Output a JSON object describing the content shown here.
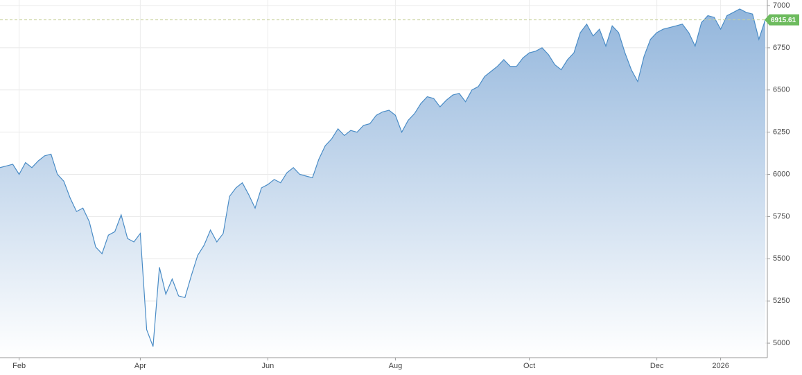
{
  "chart_data": {
    "type": "area",
    "color": "#4a8cc6",
    "ylim": [
      4914,
      7033
    ],
    "yticks": [
      5000,
      5250,
      5500,
      5750,
      6000,
      6250,
      6500,
      6750,
      7000
    ],
    "grid": true,
    "last_value": 6915.61,
    "categories": [
      null,
      null,
      null,
      "Feb",
      null,
      null,
      null,
      null,
      null,
      null,
      null,
      null,
      null,
      null,
      null,
      null,
      null,
      null,
      null,
      null,
      null,
      null,
      "Apr",
      null,
      null,
      null,
      null,
      null,
      null,
      null,
      null,
      null,
      null,
      null,
      null,
      null,
      null,
      null,
      null,
      null,
      null,
      null,
      "Jun",
      null,
      null,
      null,
      null,
      null,
      null,
      null,
      null,
      null,
      null,
      null,
      null,
      null,
      null,
      null,
      null,
      null,
      null,
      null,
      "Aug",
      null,
      null,
      null,
      null,
      null,
      null,
      null,
      null,
      null,
      null,
      null,
      null,
      null,
      null,
      null,
      null,
      null,
      null,
      null,
      null,
      "Oct",
      null,
      null,
      null,
      null,
      null,
      null,
      null,
      null,
      null,
      null,
      null,
      null,
      null,
      null,
      null,
      null,
      null,
      null,
      null,
      "Dec",
      null,
      null,
      null,
      null,
      null,
      null,
      null,
      null,
      null,
      "2026",
      null,
      null,
      null,
      null,
      null,
      null,
      null
    ],
    "values": [
      6040,
      6050,
      6060,
      6000,
      6070,
      6040,
      6080,
      6110,
      6120,
      6000,
      5960,
      5860,
      5780,
      5800,
      5720,
      5570,
      5530,
      5640,
      5660,
      5760,
      5620,
      5600,
      5650,
      5080,
      4980,
      5450,
      5290,
      5380,
      5280,
      5270,
      5400,
      5520,
      5580,
      5670,
      5600,
      5650,
      5870,
      5920,
      5950,
      5880,
      5800,
      5920,
      5940,
      5970,
      5950,
      6010,
      6040,
      6000,
      5990,
      5980,
      6090,
      6170,
      6210,
      6270,
      6230,
      6260,
      6250,
      6290,
      6300,
      6350,
      6370,
      6380,
      6350,
      6250,
      6320,
      6360,
      6420,
      6460,
      6450,
      6400,
      6440,
      6470,
      6480,
      6430,
      6500,
      6520,
      6580,
      6610,
      6640,
      6680,
      6640,
      6640,
      6690,
      6720,
      6730,
      6750,
      6710,
      6650,
      6620,
      6680,
      6720,
      6840,
      6890,
      6820,
      6860,
      6760,
      6880,
      6840,
      6720,
      6620,
      6550,
      6700,
      6800,
      6840,
      6860,
      6870,
      6880,
      6890,
      6840,
      6760,
      6900,
      6940,
      6930,
      6860,
      6940,
      6960,
      6980,
      6960,
      6950,
      6800,
      6915.61
    ]
  }
}
